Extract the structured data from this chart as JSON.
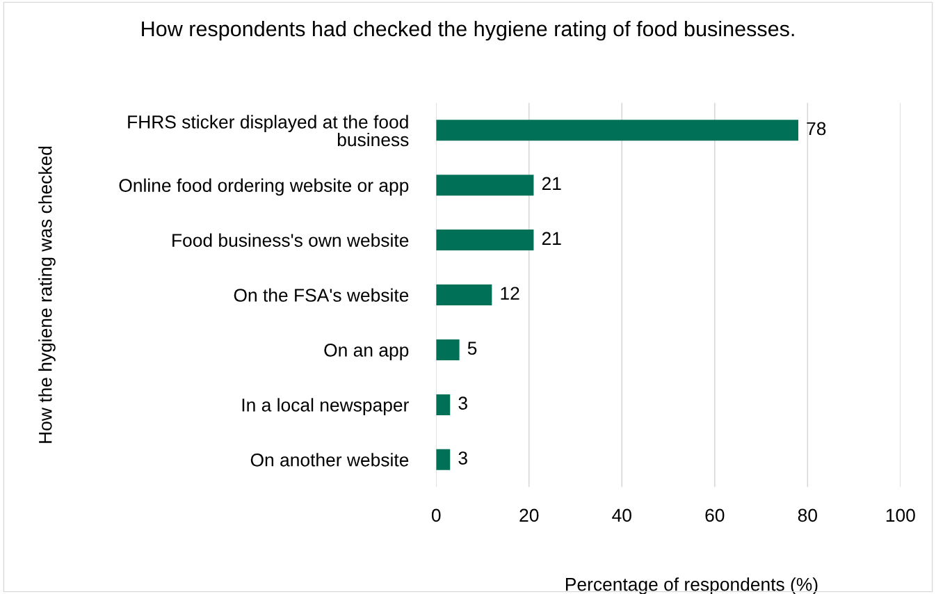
{
  "chart_data": {
    "type": "bar",
    "orientation": "horizontal",
    "title": "How respondents had checked the hygiene rating of food businesses.",
    "xlabel": "Percentage of respondents (%)",
    "ylabel": "How the hygiene rating was checked",
    "categories": [
      "FHRS sticker displayed at the food\nbusiness",
      "Online food ordering website or app",
      "Food business's own website",
      "On the FSA's website",
      "On an app",
      "In a local newspaper",
      "On another website"
    ],
    "values": [
      78,
      21,
      21,
      12,
      5,
      3,
      3
    ],
    "color": "#007056",
    "xlim": [
      0,
      100
    ],
    "xticks": [
      0,
      20,
      40,
      60,
      80,
      100
    ],
    "grid": "x",
    "data_labels": true,
    "legend": false
  }
}
